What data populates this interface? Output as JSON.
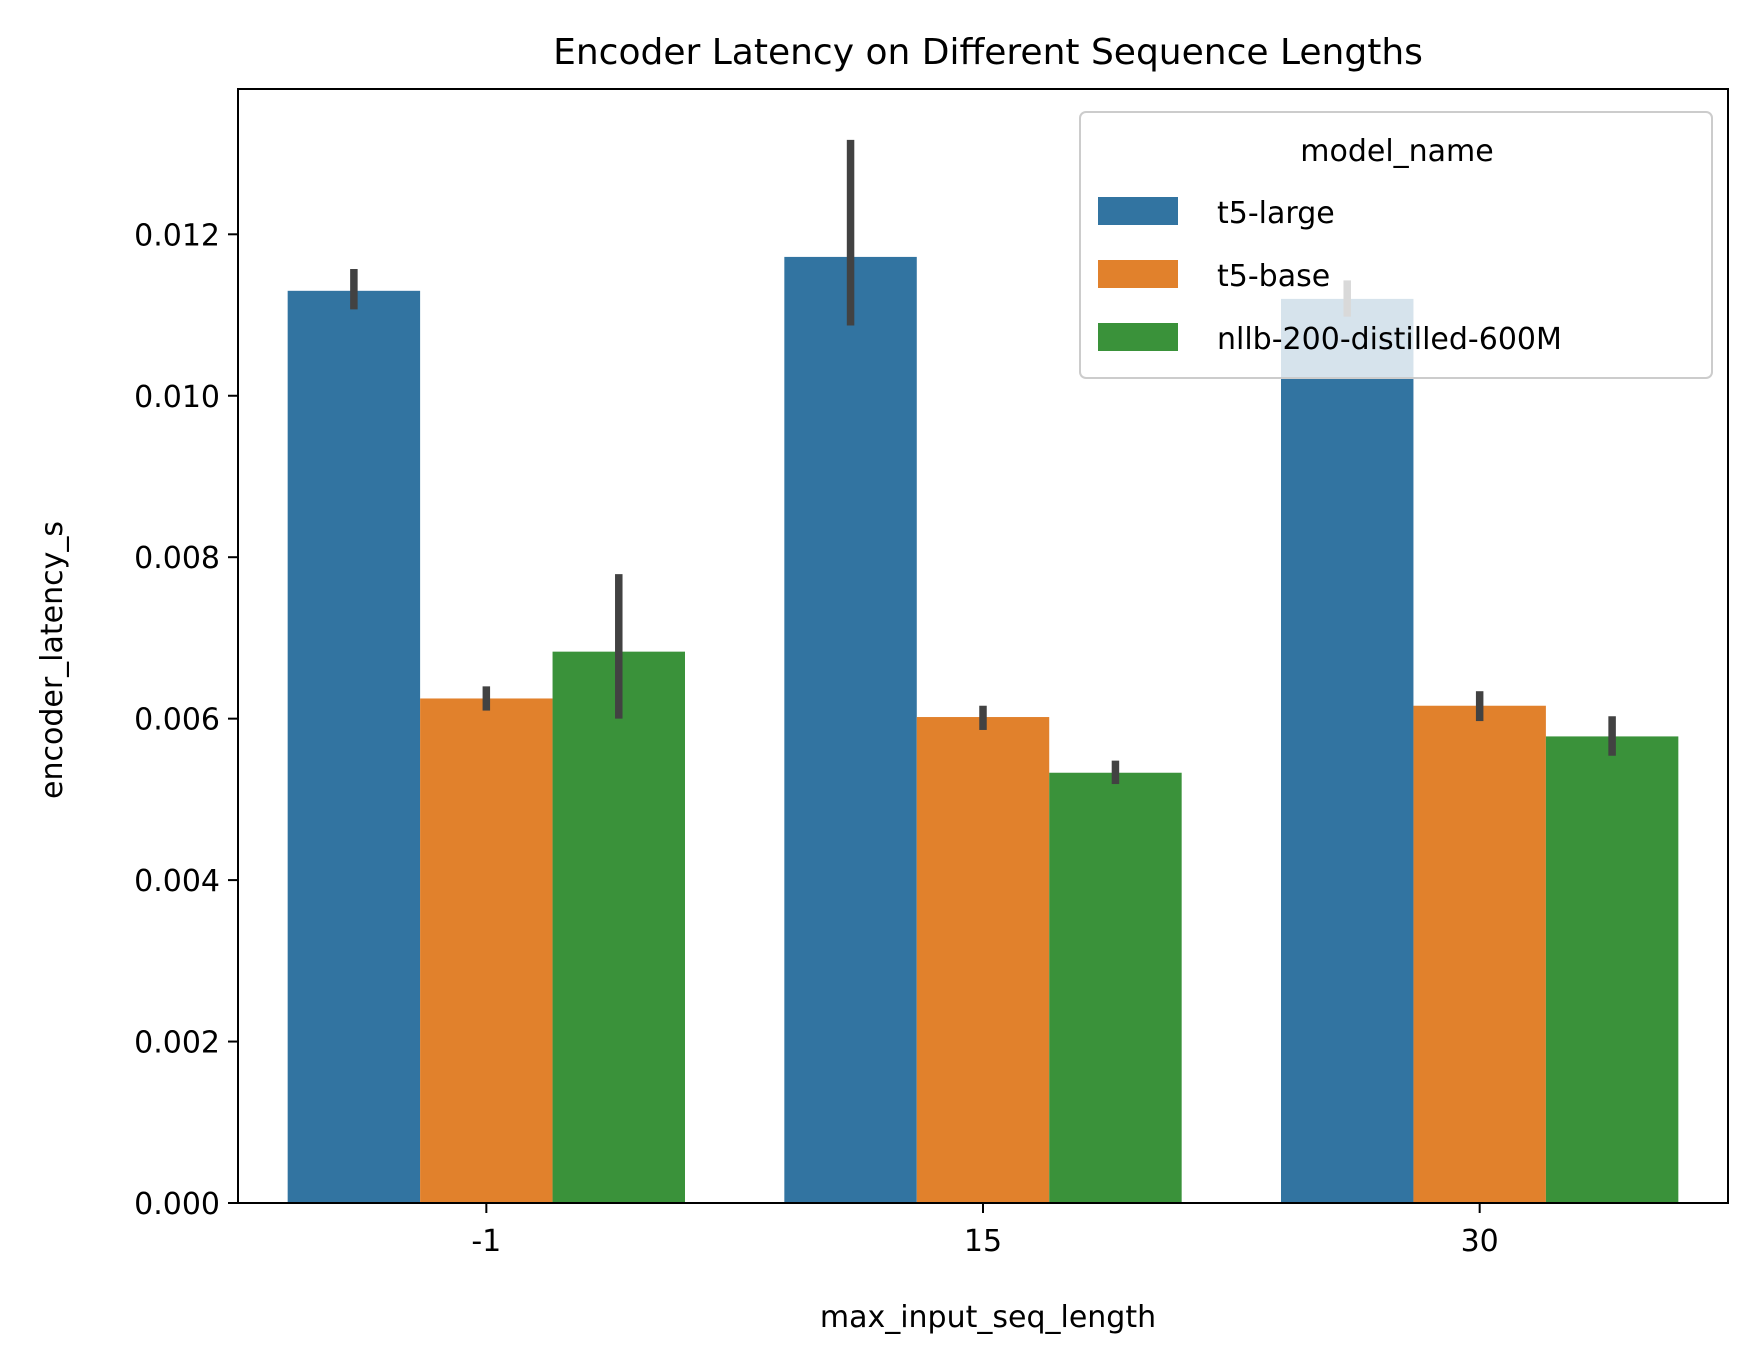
{
  "chart_data": {
    "type": "bar",
    "title": "Encoder Latency on Different Sequence Lengths",
    "xlabel": "max_input_seq_length",
    "ylabel": "encoder_latency_s",
    "categories": [
      "-1",
      "15",
      "30"
    ],
    "ylim": [
      0,
      0.0138
    ],
    "yticks": [
      "0.000",
      "0.002",
      "0.004",
      "0.006",
      "0.008",
      "0.010",
      "0.012"
    ],
    "ytick_values": [
      0,
      0.002,
      0.004,
      0.006,
      0.008,
      0.01,
      0.012
    ],
    "legend": {
      "title": "model_name",
      "placement": "top-right"
    },
    "series": [
      {
        "name": "t5-large",
        "color": "#3274a1",
        "values": [
          0.0113,
          0.01172,
          0.0112
        ],
        "err_low": [
          0.01107,
          0.01087,
          0.01098
        ],
        "err_high": [
          0.01157,
          0.01317,
          0.01143
        ]
      },
      {
        "name": "t5-base",
        "color": "#e1812c",
        "values": [
          0.00625,
          0.00602,
          0.00616
        ],
        "err_low": [
          0.0061,
          0.00586,
          0.00597
        ],
        "err_high": [
          0.0064,
          0.00616,
          0.00634
        ]
      },
      {
        "name": "nllb-200-distilled-600M",
        "color": "#3a923a",
        "values": [
          0.00683,
          0.00533,
          0.00578
        ],
        "err_low": [
          0.006,
          0.00519,
          0.00554
        ],
        "err_high": [
          0.00779,
          0.00548,
          0.00603
        ]
      }
    ],
    "grid": false
  }
}
